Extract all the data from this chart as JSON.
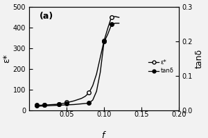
{
  "title": "(a)",
  "ylabel_left": "ε*",
  "ylabel_right": "tanδ",
  "xlim": [
    0,
    0.2
  ],
  "ylim_left": [
    0,
    500
  ],
  "ylim_right": [
    0.0,
    0.3
  ],
  "xticks": [
    0.05,
    0.1,
    0.15,
    0.2
  ],
  "yticks_left": [
    0,
    100,
    200,
    300,
    400,
    500
  ],
  "yticks_right": [
    0.0,
    0.1,
    0.2,
    0.3
  ],
  "eps_x": [
    0.01,
    0.02,
    0.04,
    0.05,
    0.08,
    0.1,
    0.11
  ],
  "eps_y": [
    25,
    28,
    30,
    40,
    85,
    335,
    450
  ],
  "tand_x": [
    0.01,
    0.02,
    0.04,
    0.05,
    0.08,
    0.1,
    0.11
  ],
  "tand_y": [
    0.013,
    0.015,
    0.017,
    0.02,
    0.022,
    0.2,
    0.25
  ],
  "eps_curve_x": [
    0.01,
    0.02,
    0.03,
    0.04,
    0.05,
    0.06,
    0.065,
    0.07,
    0.075,
    0.08,
    0.085,
    0.09,
    0.095,
    0.1,
    0.105,
    0.11,
    0.115,
    0.12
  ],
  "eps_curve_y": [
    24,
    26,
    28,
    30,
    37,
    46,
    52,
    58,
    68,
    85,
    120,
    175,
    255,
    335,
    395,
    450,
    452,
    448
  ],
  "tand_curve_x": [
    0.01,
    0.02,
    0.03,
    0.04,
    0.05,
    0.06,
    0.065,
    0.07,
    0.075,
    0.08,
    0.085,
    0.09,
    0.095,
    0.1,
    0.105,
    0.11,
    0.115,
    0.12
  ],
  "tand_curve_y": [
    0.012,
    0.013,
    0.014,
    0.015,
    0.016,
    0.017,
    0.018,
    0.019,
    0.02,
    0.021,
    0.03,
    0.055,
    0.11,
    0.197,
    0.22,
    0.248,
    0.252,
    0.252
  ],
  "background_color": "#f2f2f2",
  "legend_eps_label": "ε*",
  "legend_tand_label": "tanδ"
}
